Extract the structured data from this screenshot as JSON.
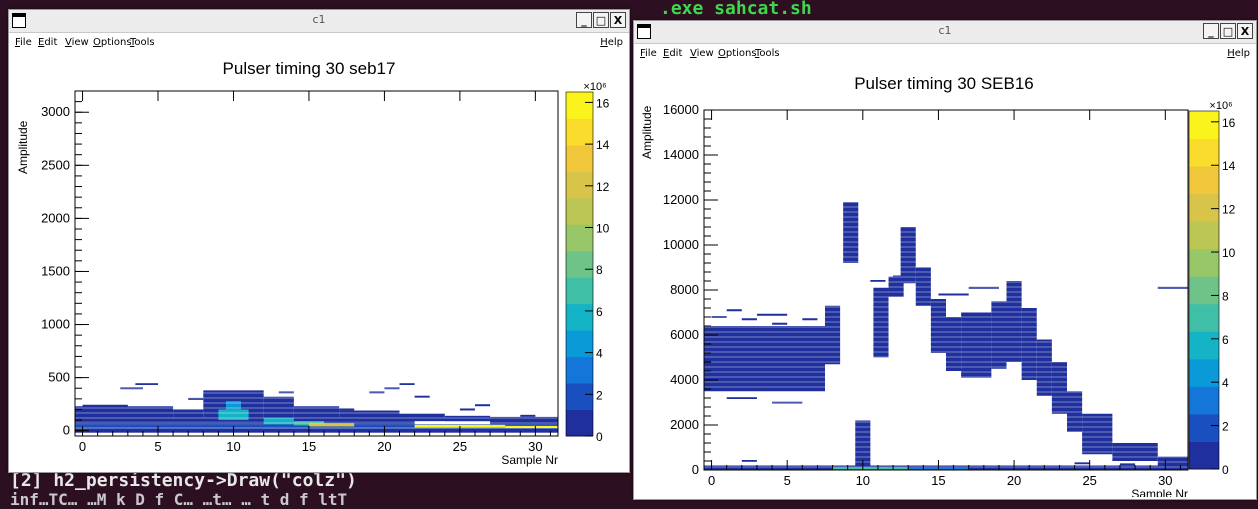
{
  "terminal": {
    "top_fragment": ".exe  sahcat.sh",
    "line1": "[2] h2_persistency->Draw(\"colz\")",
    "line2": "inf…TC…     …M k D f C…     …t…    … t d f ltT"
  },
  "windows": [
    {
      "title": "c1",
      "menus": [
        "File",
        "Edit",
        "View",
        "Options",
        "Tools"
      ],
      "help": "Help",
      "buttons": [
        "_",
        "□",
        "X"
      ],
      "chart_data": {
        "type": "heatmap",
        "title": "Pulser timing 30 seb17",
        "xlabel": "Sample Nr",
        "ylabel": "Amplitude",
        "xlim": [
          -0.5,
          31.5
        ],
        "ylim": [
          -50,
          3200
        ],
        "xticks": [
          0,
          5,
          10,
          15,
          20,
          25,
          30
        ],
        "yticks": [
          0,
          500,
          1000,
          1500,
          2000,
          2500,
          3000
        ],
        "z_multiplier": "×10⁶",
        "zticks": [
          0,
          2,
          4,
          6,
          8,
          10,
          12,
          14,
          16
        ],
        "zlim": [
          0,
          16.5
        ],
        "cells": [
          [
            -0.5,
            31.5,
            -20,
            20,
            0.5
          ],
          [
            -0.5,
            31.5,
            20,
            60,
            1.5
          ],
          [
            -0.5,
            22,
            60,
            90,
            0.9
          ],
          [
            -0.5,
            31.5,
            90,
            120,
            0.3
          ],
          [
            -0.5,
            6,
            120,
            230,
            0.3
          ],
          [
            6,
            8,
            120,
            200,
            0.3
          ],
          [
            8,
            12,
            120,
            380,
            0.3
          ],
          [
            12,
            14,
            120,
            320,
            0.3
          ],
          [
            14,
            17,
            120,
            230,
            0.3
          ],
          [
            17,
            21,
            120,
            190,
            0.3
          ],
          [
            21,
            24,
            120,
            160,
            0.3
          ],
          [
            24,
            27,
            90,
            140,
            0.3
          ],
          [
            27,
            31.5,
            60,
            130,
            0.3
          ],
          [
            9,
            11,
            100,
            200,
            6.0
          ],
          [
            9.5,
            10.5,
            200,
            280,
            4.0
          ],
          [
            12,
            14,
            60,
            120,
            5.5
          ],
          [
            14,
            16,
            50,
            90,
            7.5
          ],
          [
            15,
            18,
            40,
            70,
            11.5
          ],
          [
            22,
            28,
            30,
            55,
            15.5
          ],
          [
            28,
            31.5,
            25,
            45,
            16.2
          ]
        ],
        "strokes": [
          [
            0,
            3,
            235
          ],
          [
            2.5,
            4,
            400
          ],
          [
            3.5,
            5,
            440
          ],
          [
            7,
            8,
            300
          ],
          [
            13,
            14,
            360
          ],
          [
            19,
            20,
            360
          ],
          [
            20,
            21,
            400
          ],
          [
            21,
            22,
            440
          ],
          [
            22,
            23,
            320
          ],
          [
            25,
            26,
            200
          ],
          [
            26,
            27,
            240
          ],
          [
            17,
            18,
            200
          ],
          [
            29,
            30,
            140
          ]
        ]
      }
    },
    {
      "title": "c1",
      "menus": [
        "File",
        "Edit",
        "View",
        "Options",
        "Tools"
      ],
      "help": "Help",
      "buttons": [
        "_",
        "□",
        "X"
      ],
      "chart_data": {
        "type": "heatmap",
        "title": "Pulser timing 30 SEB16",
        "xlabel": "Sample Nr",
        "ylabel": "Amplitude",
        "xlim": [
          -0.5,
          31.5
        ],
        "ylim": [
          0,
          16000
        ],
        "xticks": [
          0,
          5,
          10,
          15,
          20,
          25,
          30
        ],
        "yticks": [
          0,
          2000,
          4000,
          6000,
          8000,
          10000,
          12000,
          14000,
          16000
        ],
        "z_multiplier": "×10⁶",
        "zticks": [
          0,
          2,
          4,
          6,
          8,
          10,
          12,
          14,
          16
        ],
        "zlim": [
          0,
          16.5
        ],
        "cells": [
          [
            -0.5,
            7.5,
            3500,
            6400,
            0.35
          ],
          [
            7.5,
            8.5,
            4700,
            7300,
            0.35
          ],
          [
            8.7,
            9.7,
            9200,
            11900,
            0.35
          ],
          [
            9.5,
            10.5,
            100,
            2200,
            0.35
          ],
          [
            10.7,
            11.7,
            5000,
            8100,
            0.35
          ],
          [
            11.7,
            12.7,
            7700,
            8600,
            0.35
          ],
          [
            12.5,
            13.5,
            8300,
            10800,
            0.35
          ],
          [
            13.5,
            14.5,
            7300,
            9000,
            0.35
          ],
          [
            14.5,
            15.5,
            5200,
            7600,
            0.35
          ],
          [
            15.5,
            16.5,
            4400,
            6800,
            0.35
          ],
          [
            16.5,
            18.5,
            4100,
            7000,
            0.35
          ],
          [
            18.5,
            19.5,
            4500,
            7500,
            0.35
          ],
          [
            19.5,
            20.5,
            4800,
            8400,
            0.35
          ],
          [
            20.5,
            21.5,
            4000,
            7200,
            0.35
          ],
          [
            21.5,
            22.5,
            3300,
            5800,
            0.35
          ],
          [
            22.5,
            23.5,
            2500,
            4800,
            0.35
          ],
          [
            23.5,
            24.5,
            1700,
            3500,
            0.35
          ],
          [
            24.5,
            26.5,
            700,
            2500,
            0.35
          ],
          [
            26.5,
            29.5,
            400,
            1200,
            0.35
          ],
          [
            29.5,
            31.5,
            50,
            600,
            0.35
          ],
          [
            -0.5,
            31.5,
            0,
            200,
            0.5
          ],
          [
            8,
            13,
            30,
            120,
            6.5
          ],
          [
            13,
            17,
            30,
            100,
            3.0
          ]
        ],
        "strokes": [
          [
            0,
            1,
            6800
          ],
          [
            1,
            2,
            7100
          ],
          [
            2,
            3,
            6700
          ],
          [
            3,
            5,
            6900
          ],
          [
            4,
            5,
            6500
          ],
          [
            6,
            7,
            6700
          ],
          [
            1,
            3,
            3200
          ],
          [
            4,
            6,
            3000
          ],
          [
            10.5,
            11.5,
            8400
          ],
          [
            12,
            14,
            8600
          ],
          [
            15,
            17,
            7800
          ],
          [
            17,
            19,
            8100
          ],
          [
            29.5,
            31.5,
            8100
          ],
          [
            24,
            25,
            300
          ],
          [
            27,
            28,
            250
          ],
          [
            2,
            3,
            400
          ]
        ]
      }
    }
  ],
  "colors": {
    "terminal_bg": "#2c0f20",
    "palette": [
      "#1f2f9e",
      "#1a4fc0",
      "#1476d8",
      "#0a9ad8",
      "#14b4c6",
      "#3fbfa6",
      "#6ec488",
      "#98c76a",
      "#bcc654",
      "#d8c448",
      "#f0c73a",
      "#fadc2c",
      "#fbf31c"
    ]
  }
}
